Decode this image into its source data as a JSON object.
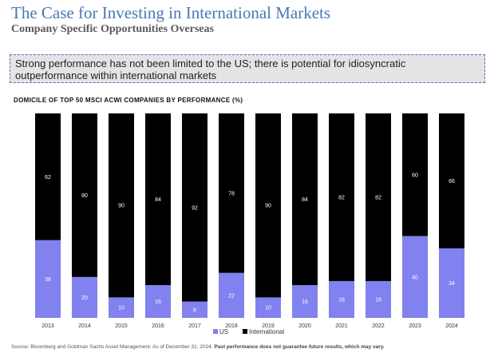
{
  "header": {
    "title": "The Case for Investing in International Markets",
    "subtitle": "Company Specific Opportunities Overseas"
  },
  "callout": {
    "text": "Strong performance has not been limited to the US; there is potential for idiosyncratic outperformance within international markets"
  },
  "footnote": {
    "source": "Source: Bloomberg and Goldman Sachs Asset Management. As of December 31, 2024.",
    "disclaimer": "Past performance does not guarantee future results, which may vary."
  },
  "colors": {
    "us": "#8181f0",
    "international": "#000000"
  },
  "chart_data": {
    "type": "bar",
    "stacked": true,
    "title": "DOMICILE OF TOP 50 MSCI ACWI COMPANIES BY PERFORMANCE (%)",
    "categories": [
      "2013",
      "2014",
      "2015",
      "2016",
      "2017",
      "2018",
      "2019",
      "2020",
      "2021",
      "2022",
      "2023",
      "2024"
    ],
    "series": [
      {
        "name": "US",
        "values": [
          38,
          20,
          10,
          16,
          8,
          22,
          10,
          16,
          18,
          18,
          40,
          34
        ]
      },
      {
        "name": "International",
        "values": [
          62,
          80,
          90,
          84,
          92,
          78,
          90,
          84,
          82,
          82,
          60,
          66
        ]
      }
    ],
    "ylim": [
      0,
      100
    ],
    "grid": false,
    "legend": "bottom-center",
    "data_labels": true
  }
}
